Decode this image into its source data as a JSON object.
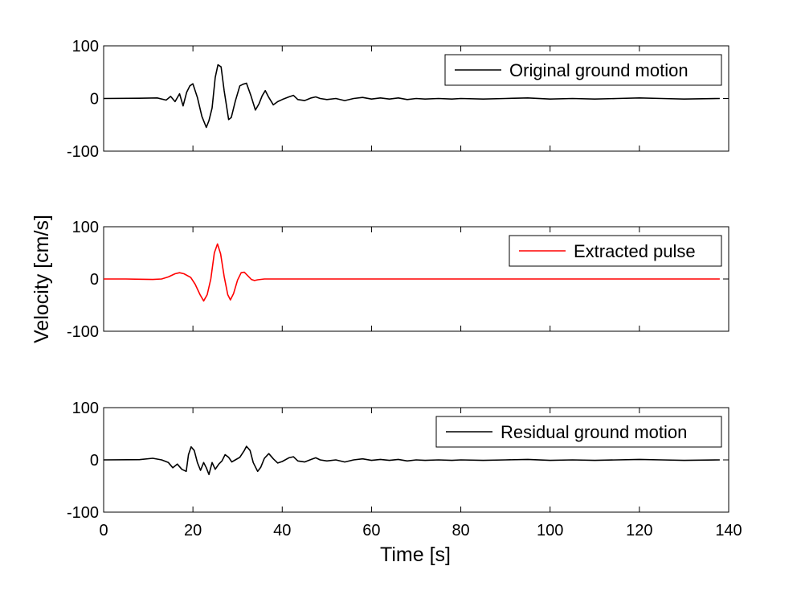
{
  "chart_data": {
    "type": "line",
    "ylabel": "Velocity [cm/s]",
    "xlabel": "Time [s]",
    "xlim": [
      0,
      140
    ],
    "xticks": [
      "0",
      "20",
      "40",
      "60",
      "80",
      "100",
      "120",
      "140"
    ],
    "shared_x_axis": true,
    "grid": false,
    "legend_position": "top-right",
    "panels": [
      {
        "ylim": [
          -100,
          100
        ],
        "yticks": [
          "100",
          "0",
          "-100"
        ],
        "series": [
          {
            "name": "Original ground motion",
            "color": "#000000",
            "points": [
              [
                0,
                0
              ],
              [
                8,
                0.5
              ],
              [
                12,
                1
              ],
              [
                14,
                -3
              ],
              [
                15,
                4
              ],
              [
                16,
                -6
              ],
              [
                17,
                9
              ],
              [
                17.8,
                -14
              ],
              [
                18.6,
                12
              ],
              [
                19.3,
                24
              ],
              [
                20,
                28
              ],
              [
                21,
                2
              ],
              [
                22,
                -34
              ],
              [
                23,
                -55
              ],
              [
                23.6,
                -42
              ],
              [
                24.3,
                -18
              ],
              [
                25,
                40
              ],
              [
                25.6,
                64
              ],
              [
                26.3,
                60
              ],
              [
                27,
                15
              ],
              [
                28,
                -40
              ],
              [
                28.6,
                -36
              ],
              [
                29.5,
                -5
              ],
              [
                30.5,
                24
              ],
              [
                31.2,
                27
              ],
              [
                32,
                29
              ],
              [
                33,
                5
              ],
              [
                34,
                -22
              ],
              [
                34.8,
                -10
              ],
              [
                35.5,
                5
              ],
              [
                36.2,
                15
              ],
              [
                37,
                2
              ],
              [
                38,
                -12
              ],
              [
                39,
                -6
              ],
              [
                40,
                -2
              ],
              [
                41.5,
                3
              ],
              [
                42.5,
                6
              ],
              [
                43.5,
                -2
              ],
              [
                45,
                -4
              ],
              [
                46.5,
                1
              ],
              [
                47.5,
                3
              ],
              [
                48.5,
                0
              ],
              [
                50,
                -2
              ],
              [
                52,
                0
              ],
              [
                54,
                -4
              ],
              [
                56,
                0
              ],
              [
                58,
                2
              ],
              [
                60,
                -1
              ],
              [
                62,
                1
              ],
              [
                64,
                -1
              ],
              [
                66,
                1
              ],
              [
                68,
                -2
              ],
              [
                70,
                0
              ],
              [
                72,
                -1
              ],
              [
                75,
                0
              ],
              [
                78,
                -1
              ],
              [
                80,
                0
              ],
              [
                85,
                -1
              ],
              [
                90,
                0
              ],
              [
                95,
                1
              ],
              [
                100,
                -1
              ],
              [
                105,
                0
              ],
              [
                110,
                -1
              ],
              [
                115,
                0
              ],
              [
                120,
                1
              ],
              [
                125,
                0
              ],
              [
                130,
                -1
              ],
              [
                138,
                0
              ]
            ]
          }
        ]
      },
      {
        "ylim": [
          -100,
          100
        ],
        "yticks": [
          "100",
          "0",
          "-100"
        ],
        "series": [
          {
            "name": "Extracted pulse",
            "color": "#ff0000",
            "points": [
              [
                0,
                0
              ],
              [
                5,
                0
              ],
              [
                8,
                -0.5
              ],
              [
                11,
                -1
              ],
              [
                13,
                0
              ],
              [
                14.5,
                4
              ],
              [
                16,
                10
              ],
              [
                17,
                12
              ],
              [
                18,
                10
              ],
              [
                19.5,
                3
              ],
              [
                20.5,
                -10
              ],
              [
                21.6,
                -30
              ],
              [
                22.4,
                -42
              ],
              [
                23.2,
                -30
              ],
              [
                24,
                0
              ],
              [
                24.8,
                50
              ],
              [
                25.5,
                67
              ],
              [
                26.2,
                48
              ],
              [
                27,
                5
              ],
              [
                27.8,
                -30
              ],
              [
                28.4,
                -40
              ],
              [
                29.1,
                -28
              ],
              [
                30,
                -2
              ],
              [
                30.8,
                12
              ],
              [
                31.5,
                13
              ],
              [
                32.3,
                6
              ],
              [
                33.1,
                -1
              ],
              [
                33.8,
                -3
              ],
              [
                34.5,
                -1.5
              ],
              [
                36,
                0
              ],
              [
                45,
                0
              ],
              [
                138,
                0
              ]
            ]
          }
        ]
      },
      {
        "ylim": [
          -100,
          100
        ],
        "yticks": [
          "100",
          "0",
          "-100"
        ],
        "series": [
          {
            "name": "Residual ground motion",
            "color": "#000000",
            "points": [
              [
                0,
                0
              ],
              [
                8,
                0.5
              ],
              [
                11,
                3
              ],
              [
                13,
                0
              ],
              [
                14.5,
                -5
              ],
              [
                15.5,
                -15
              ],
              [
                16.5,
                -8
              ],
              [
                17.5,
                -18
              ],
              [
                18.5,
                -22
              ],
              [
                19,
                10
              ],
              [
                19.6,
                25
              ],
              [
                20.3,
                18
              ],
              [
                21,
                -5
              ],
              [
                21.7,
                -20
              ],
              [
                22.4,
                -5
              ],
              [
                23,
                -15
              ],
              [
                23.6,
                -28
              ],
              [
                24.3,
                -5
              ],
              [
                25,
                -18
              ],
              [
                25.8,
                -8
              ],
              [
                26.5,
                -2
              ],
              [
                27.2,
                10
              ],
              [
                28,
                5
              ],
              [
                28.7,
                -4
              ],
              [
                29.5,
                0
              ],
              [
                30.5,
                5
              ],
              [
                31.5,
                18
              ],
              [
                32,
                26
              ],
              [
                32.8,
                18
              ],
              [
                33.5,
                -5
              ],
              [
                34.5,
                -22
              ],
              [
                35.2,
                -14
              ],
              [
                36,
                3
              ],
              [
                37,
                12
              ],
              [
                38,
                2
              ],
              [
                39,
                -6
              ],
              [
                40,
                -3
              ],
              [
                41.5,
                4
              ],
              [
                42.5,
                6
              ],
              [
                43.5,
                -2
              ],
              [
                45,
                -4
              ],
              [
                46.5,
                1
              ],
              [
                47.5,
                4
              ],
              [
                48.5,
                0
              ],
              [
                50,
                -2
              ],
              [
                52,
                0
              ],
              [
                54,
                -4
              ],
              [
                56,
                0
              ],
              [
                58,
                2
              ],
              [
                60,
                -1
              ],
              [
                62,
                1
              ],
              [
                64,
                -1
              ],
              [
                66,
                1
              ],
              [
                68,
                -2
              ],
              [
                70,
                0
              ],
              [
                72,
                -1
              ],
              [
                75,
                0
              ],
              [
                78,
                -1
              ],
              [
                80,
                0
              ],
              [
                85,
                -1
              ],
              [
                90,
                0
              ],
              [
                95,
                1
              ],
              [
                100,
                -1
              ],
              [
                105,
                0
              ],
              [
                110,
                -1
              ],
              [
                115,
                0
              ],
              [
                120,
                1
              ],
              [
                125,
                0
              ],
              [
                130,
                -1
              ],
              [
                138,
                0
              ]
            ]
          }
        ]
      }
    ]
  }
}
